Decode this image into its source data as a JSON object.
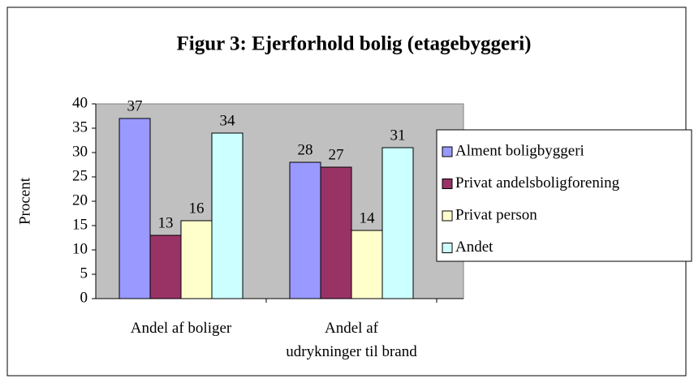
{
  "chart_data": {
    "type": "bar",
    "title": "Figur 3: Ejerforhold bolig  (etagebyggeri)",
    "ylabel": "Procent",
    "categories": [
      "Andel af boliger",
      "Andel af\nudrykninger til brand"
    ],
    "series": [
      {
        "name": "Alment boligbyggeri",
        "color": "#9999ff",
        "values": [
          37,
          28
        ]
      },
      {
        "name": "Privat andelsboligforening",
        "color": "#993366",
        "values": [
          13,
          27
        ]
      },
      {
        "name": "Privat person",
        "color": "#ffffcc",
        "values": [
          16,
          14
        ]
      },
      {
        "name": "Andet",
        "color": "#ccffff",
        "values": [
          34,
          31
        ]
      }
    ],
    "ylim": [
      0,
      40
    ],
    "yticks": [
      0,
      5,
      10,
      15,
      20,
      25,
      30,
      35,
      40
    ],
    "grid": false,
    "legend": "right",
    "plot_background": "#c0c0c0"
  }
}
